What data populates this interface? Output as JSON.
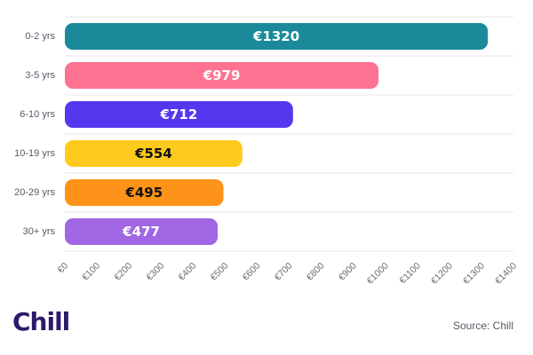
{
  "chart_data": {
    "type": "bar",
    "orientation": "horizontal",
    "categories": [
      "0-2 yrs",
      "3-5 yrs",
      "6-10 yrs",
      "10-19 yrs",
      "20-29 yrs",
      "30+ yrs"
    ],
    "values": [
      1320,
      979,
      712,
      554,
      495,
      477
    ],
    "value_labels": [
      "€1320",
      "€979",
      "€712",
      "€554",
      "€495",
      "€477"
    ],
    "bar_colors": [
      "#1a8a9a",
      "#fe7291",
      "#5538ee",
      "#ffca1e",
      "#fd9419",
      "#a066e3"
    ],
    "label_colors": [
      "#ffffff",
      "#ffffff",
      "#ffffff",
      "#111111",
      "#111111",
      "#ffffff"
    ],
    "xlim": [
      0,
      1400
    ],
    "x_ticks": [
      0,
      100,
      200,
      300,
      400,
      500,
      600,
      700,
      800,
      900,
      1000,
      1100,
      1200,
      1300,
      1400
    ],
    "x_tick_labels": [
      "€0",
      "€100",
      "€200",
      "€300",
      "€400",
      "€500",
      "€600",
      "€700",
      "€800",
      "€900",
      "€1000",
      "€1100",
      "€1200",
      "€1300",
      "€1400"
    ],
    "grid": "horizontal",
    "title": "",
    "xlabel": "",
    "ylabel": ""
  },
  "footer": {
    "logo_text": "Chill",
    "source_text": "Source: Chill"
  },
  "colors": {
    "logo": "#2d1a6b",
    "grid": "#e6e6ea",
    "axis_text": "#666b75"
  }
}
